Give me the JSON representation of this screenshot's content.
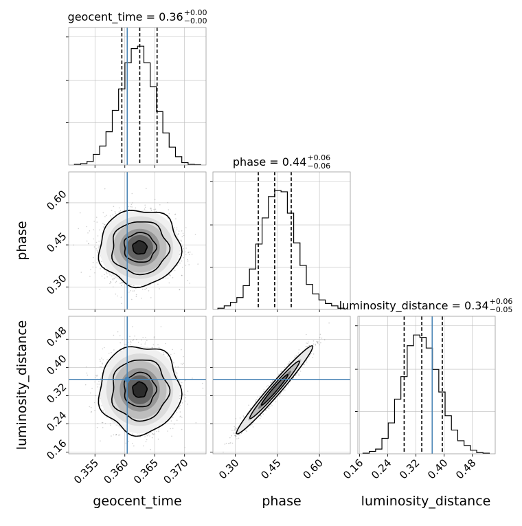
{
  "chart_data": {
    "type": "corner",
    "accent_color": "#4682b4",
    "params": [
      {
        "name": "geocent_time",
        "xlabel": "geocent_time",
        "title": {
          "prefix": "geocent_time = 0.36",
          "sup": "+0.00",
          "sub": "−0.00"
        },
        "range": [
          0.3506,
          0.3736
        ],
        "ticks": [
          0.355,
          0.36,
          0.365,
          0.37
        ],
        "tick_labels": [
          "0.355",
          "0.360",
          "0.365",
          "0.370"
        ],
        "truth": 0.3604,
        "quantiles": [
          0.3595,
          0.3625,
          0.3654
        ],
        "hist": [
          0.006,
          0.012,
          0.03,
          0.09,
          0.16,
          0.28,
          0.46,
          0.64,
          0.86,
          0.98,
          1.0,
          0.86,
          0.66,
          0.45,
          0.27,
          0.15,
          0.07,
          0.02,
          0.006,
          0.003
        ]
      },
      {
        "name": "phase",
        "xlabel": "phase",
        "ylabel": "phase",
        "title": {
          "prefix": "phase = 0.44",
          "sup": "+0.06",
          "sub": "−0.06"
        },
        "range": [
          0.22,
          0.71
        ],
        "ticks": [
          0.3,
          0.45,
          0.6
        ],
        "tick_labels": [
          "0.30",
          "0.45",
          "0.60"
        ],
        "quantiles": [
          0.3818,
          0.4403,
          0.4993
        ],
        "hist": [
          0.01,
          0.03,
          0.06,
          0.1,
          0.2,
          0.34,
          0.55,
          0.77,
          0.95,
          1.0,
          0.99,
          0.81,
          0.56,
          0.37,
          0.21,
          0.13,
          0.08,
          0.05,
          0.03,
          0.01
        ]
      },
      {
        "name": "luminosity_distance",
        "xlabel": "luminosity_distance",
        "ylabel": "luminosity_distance",
        "title": {
          "prefix": "luminosity_distance = 0.34",
          "sup": "+0.06",
          "sub": "−0.05"
        },
        "range": [
          0.155,
          0.545
        ],
        "ticks": [
          0.16,
          0.24,
          0.32,
          0.4,
          0.48
        ],
        "tick_labels": [
          "0.16",
          "0.24",
          "0.32",
          "0.40",
          "0.48"
        ],
        "truth": 0.366,
        "quantiles": [
          0.2865,
          0.3365,
          0.3948
        ],
        "hist": [
          0.005,
          0.02,
          0.04,
          0.13,
          0.26,
          0.46,
          0.65,
          0.91,
          1.0,
          0.98,
          0.89,
          0.71,
          0.52,
          0.32,
          0.2,
          0.11,
          0.07,
          0.03,
          0.01,
          0.005
        ]
      }
    ],
    "grid": true,
    "contour_levels": 3
  }
}
